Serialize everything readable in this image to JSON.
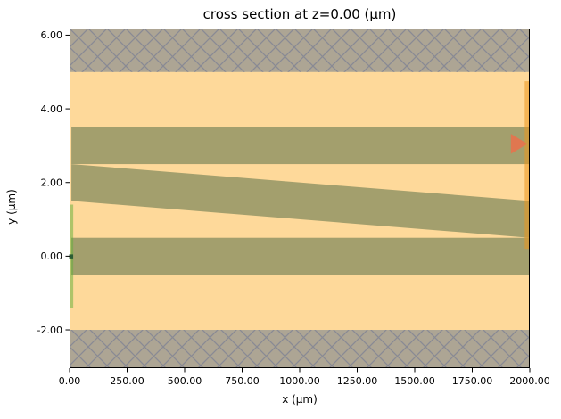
{
  "chart_data": {
    "type": "area",
    "subtype": "simulation-cross-section",
    "title": "cross section at z=0.00 (μm)",
    "xlabel": "x (μm)",
    "ylabel": "y (μm)",
    "xlim": [
      0,
      2000
    ],
    "ylim": [
      -3.04,
      6.18
    ],
    "xticks": [
      0,
      250,
      500,
      750,
      1000,
      1250,
      1500,
      1750,
      2000
    ],
    "xtick_labels": [
      "0.00",
      "250.00",
      "500.00",
      "750.00",
      "1000.00",
      "1250.00",
      "1500.00",
      "1750.00",
      "2000.00"
    ],
    "yticks": [
      6,
      4,
      2,
      0,
      -2
    ],
    "ytick_labels": [
      "6.00",
      "4.00",
      "2.00",
      "0.00",
      "-2.00"
    ],
    "grid": false,
    "legend": null,
    "colors": {
      "cladding": "#fed99a",
      "waveguide": "#a39f6d",
      "pml_fill": "#ada594",
      "hatch_line": "#898a94",
      "source_overlay": "rgba(95,175,55,0.5)",
      "source_marker": "#2a5c33",
      "monitor_overlay": "rgba(235,150,30,0.55)",
      "arrow": "#e7724d",
      "border": "#000000"
    },
    "regions": {
      "cladding_band": {
        "x": [
          0,
          2000
        ],
        "y": [
          -2.0,
          5.0
        ]
      },
      "pml_top": {
        "x": [
          0,
          2000
        ],
        "y": [
          5.0,
          6.18
        ]
      },
      "pml_bottom": {
        "x": [
          0,
          2000
        ],
        "y": [
          -3.04,
          -2.0
        ]
      }
    },
    "structures": [
      {
        "name": "upper-slab",
        "shape": "rect",
        "x": [
          8,
          2000
        ],
        "y": [
          2.5,
          3.5
        ]
      },
      {
        "name": "lower-slab",
        "shape": "rect",
        "x": [
          8,
          2000
        ],
        "y": [
          -0.5,
          0.5
        ]
      },
      {
        "name": "tilted-waveguide",
        "shape": "polygon",
        "points": [
          [
            8,
            2.5
          ],
          [
            2000,
            1.5
          ],
          [
            2000,
            0.5
          ],
          [
            8,
            1.5
          ]
        ]
      }
    ],
    "overlays": {
      "source_plane": {
        "x": [
          2,
          16
        ],
        "y": [
          -1.4,
          1.4
        ]
      },
      "source_marker": {
        "x": 6,
        "y": 0
      },
      "monitor_plane": {
        "x": [
          1978,
          2000
        ],
        "y": [
          0.2,
          4.75
        ]
      },
      "direction_arrow": {
        "tip": [
          1990,
          3.05
        ],
        "base_x": 1918,
        "half_height": 0.27
      }
    }
  }
}
